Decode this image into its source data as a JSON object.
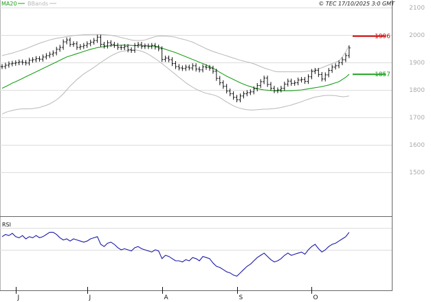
{
  "chart_data": {
    "type": "line",
    "legend": [
      {
        "name": "MA20",
        "color": "#1aa01a"
      },
      {
        "name": "BBands",
        "color": "#b8b8b8"
      }
    ],
    "timestamp": "© TEC 17/10/2025 3:0 GMT",
    "price_axis": {
      "ylim": [
        1400,
        2120
      ],
      "ticks": [
        1500,
        1600,
        1700,
        1800,
        1900,
        2000,
        2100
      ],
      "tick_labels": [
        "1500",
        "1600",
        "1700",
        "1800",
        "1900",
        "2000",
        "2100"
      ]
    },
    "x_labels": [
      "J",
      "J",
      "A",
      "S",
      "O"
    ],
    "x_label_index": [
      4,
      25,
      47,
      69,
      91
    ],
    "levels": [
      {
        "label": "1996",
        "value": 1996,
        "color": "#cc0000"
      },
      {
        "label": "1857",
        "value": 1857,
        "color": "#1aa01a"
      }
    ],
    "price_color": "#111111",
    "ma_color": "#1aa01a",
    "bb_color": "#b8b8b8",
    "rsi_color": "#1a1aa8",
    "series": [
      {
        "name": "Price",
        "values": [
          1885,
          1890,
          1895,
          1897,
          1899,
          1902,
          1900,
          1898,
          1908,
          1910,
          1914,
          1912,
          1920,
          1925,
          1930,
          1935,
          1948,
          1955,
          1975,
          1982,
          1966,
          1968,
          1955,
          1958,
          1962,
          1968,
          1974,
          1980,
          1992,
          1966,
          1960,
          1972,
          1966,
          1962,
          1955,
          1954,
          1958,
          1946,
          1944,
          1962,
          1966,
          1958,
          1960,
          1958,
          1962,
          1956,
          1950,
          1911,
          1916,
          1910,
          1896,
          1885,
          1880,
          1878,
          1883,
          1880,
          1888,
          1876,
          1873,
          1884,
          1882,
          1879,
          1868,
          1842,
          1826,
          1813,
          1796,
          1786,
          1773,
          1764,
          1778,
          1786,
          1790,
          1793,
          1804,
          1816,
          1830,
          1843,
          1820,
          1806,
          1797,
          1800,
          1806,
          1821,
          1832,
          1824,
          1826,
          1836,
          1838,
          1831,
          1848,
          1867,
          1871,
          1856,
          1840,
          1855,
          1871,
          1883,
          1888,
          1899,
          1910,
          1925,
          1953
        ]
      },
      {
        "name": "MA20",
        "values": [
          1806,
          1812,
          1818,
          1825,
          1830,
          1836,
          1842,
          1848,
          1854,
          1860,
          1866,
          1872,
          1878,
          1884,
          1890,
          1896,
          1902,
          1908,
          1914,
          1920,
          1924,
          1928,
          1932,
          1936,
          1940,
          1944,
          1948,
          1951,
          1954,
          1956,
          1958,
          1960,
          1961,
          1962,
          1962,
          1963,
          1963,
          1963,
          1962,
          1961,
          1961,
          1961,
          1961,
          1960,
          1960,
          1959,
          1957,
          1952,
          1948,
          1944,
          1940,
          1936,
          1931,
          1926,
          1921,
          1916,
          1911,
          1906,
          1901,
          1896,
          1891,
          1885,
          1879,
          1872,
          1864,
          1857,
          1850,
          1844,
          1838,
          1832,
          1826,
          1821,
          1816,
          1812,
          1808,
          1805,
          1802,
          1800,
          1799,
          1798,
          1797,
          1797,
          1797,
          1797,
          1797,
          1797,
          1798,
          1799,
          1800,
          1802,
          1804,
          1806,
          1808,
          1810,
          1812,
          1815,
          1818,
          1822,
          1826,
          1830,
          1838,
          1846,
          1857
        ]
      },
      {
        "name": "BBands upper",
        "values": [
          1925,
          1928,
          1931,
          1934,
          1938,
          1942,
          1946,
          1950,
          1955,
          1960,
          1965,
          1970,
          1974,
          1978,
          1982,
          1985,
          1988,
          1990,
          1992,
          1994,
          1996,
          1998,
          1999,
          2000,
          2001,
          2001,
          2002,
          2002,
          2002,
          2002,
          2001,
          2000,
          1999,
          1997,
          1994,
          1991,
          1988,
          1985,
          1982,
          1980,
          1980,
          1980,
          1982,
          1986,
          1990,
          1994,
          1996,
          1996,
          1996,
          1995,
          1994,
          1992,
          1988,
          1985,
          1982,
          1978,
          1974,
          1968,
          1962,
          1956,
          1950,
          1945,
          1940,
          1936,
          1932,
          1928,
          1924,
          1920,
          1916,
          1912,
          1908,
          1905,
          1902,
          1899,
          1895,
          1890,
          1885,
          1880,
          1876,
          1872,
          1868,
          1866,
          1866,
          1866,
          1866,
          1866,
          1866,
          1866,
          1866,
          1867,
          1868,
          1870,
          1873,
          1877,
          1881,
          1886,
          1891,
          1896,
          1901,
          1906,
          1920,
          1938,
          1962
        ]
      },
      {
        "name": "BBands lower",
        "values": [
          1712,
          1718,
          1722,
          1725,
          1728,
          1730,
          1731,
          1731,
          1731,
          1732,
          1734,
          1736,
          1740,
          1744,
          1749,
          1756,
          1764,
          1774,
          1786,
          1800,
          1814,
          1826,
          1838,
          1848,
          1858,
          1866,
          1874,
          1882,
          1891,
          1900,
          1908,
          1916,
          1924,
          1930,
          1936,
          1940,
          1942,
          1944,
          1945,
          1946,
          1944,
          1941,
          1936,
          1930,
          1922,
          1914,
          1905,
          1896,
          1886,
          1876,
          1866,
          1856,
          1846,
          1836,
          1826,
          1818,
          1810,
          1803,
          1797,
          1792,
          1788,
          1785,
          1782,
          1778,
          1772,
          1764,
          1756,
          1749,
          1742,
          1737,
          1733,
          1730,
          1728,
          1727,
          1727,
          1728,
          1729,
          1730,
          1730,
          1731,
          1732,
          1734,
          1736,
          1739,
          1742,
          1745,
          1749,
          1753,
          1757,
          1762,
          1766,
          1770,
          1774,
          1776,
          1778,
          1780,
          1780,
          1780,
          1779,
          1777,
          1775,
          1776,
          1778
        ]
      },
      {
        "name": "RSI",
        "values": [
          62,
          64,
          63,
          65,
          62,
          61,
          63,
          60,
          62,
          61,
          63,
          61,
          62,
          64,
          66,
          66,
          64,
          61,
          59,
          60,
          58,
          60,
          59,
          58,
          57,
          58,
          60,
          61,
          62,
          55,
          53,
          56,
          57,
          55,
          52,
          50,
          51,
          50,
          49,
          52,
          53,
          51,
          50,
          49,
          48,
          50,
          49,
          42,
          45,
          44,
          42,
          40,
          40,
          39,
          41,
          40,
          43,
          42,
          40,
          44,
          43,
          42,
          38,
          35,
          34,
          32,
          30,
          29,
          27,
          26,
          29,
          32,
          35,
          37,
          40,
          43,
          45,
          47,
          44,
          41,
          39,
          40,
          42,
          45,
          47,
          45,
          46,
          47,
          48,
          46,
          50,
          53,
          55,
          51,
          48,
          50,
          53,
          55,
          56,
          58,
          60,
          62,
          66
        ]
      }
    ]
  }
}
